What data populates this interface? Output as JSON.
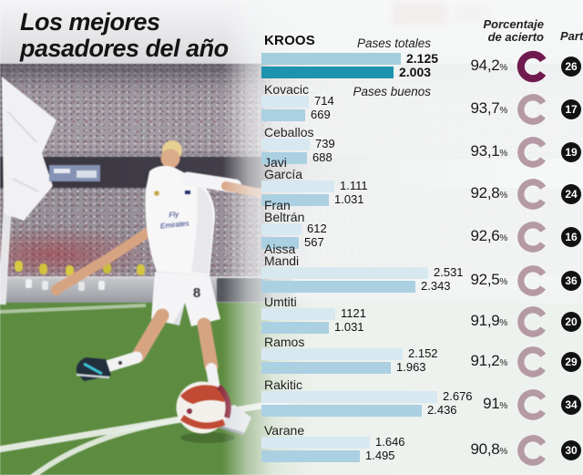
{
  "title": "Los mejores\npasadores del año",
  "columns": {
    "percent_header": "Porcentaje\nde acierto",
    "part_header": "Part.",
    "series1_label": "Pases totales",
    "series2_label": "Pases buenos",
    "percent_sign": "%"
  },
  "colors": {
    "highlight_bar_top": "#a2cddd",
    "highlight_bar_bottom": "#1d93ad",
    "bar_top": "#d7e8f1",
    "bar_bottom": "#abd0e2",
    "donut_highlight": "#701b4f",
    "donut": "#b59aa5",
    "badge": "#121212"
  },
  "chart_data": {
    "type": "bar",
    "title": "Los mejores pasadores del año",
    "series": [
      "Pases totales",
      "Pases buenos"
    ],
    "xlabel": "Pases",
    "x_scale_max": 2676,
    "players": [
      {
        "name": "KROOS",
        "pases_totales": 2125,
        "pases_buenos": 2003,
        "totales_label": "2.125",
        "buenos_label": "2.003",
        "porcentaje_acierto": "94,2",
        "partidos": "26",
        "highlight": true
      },
      {
        "name": "Kovacic",
        "pases_totales": 714,
        "pases_buenos": 669,
        "totales_label": "714",
        "buenos_label": "669",
        "porcentaje_acierto": "93,7",
        "partidos": "17",
        "highlight": false
      },
      {
        "name": "Ceballos",
        "pases_totales": 739,
        "pases_buenos": 688,
        "totales_label": "739",
        "buenos_label": "688",
        "porcentaje_acierto": "93,1",
        "partidos": "19",
        "highlight": false
      },
      {
        "name": "Javi\nGarcía",
        "pases_totales": 1111,
        "pases_buenos": 1031,
        "totales_label": "1.111",
        "buenos_label": "1.031",
        "porcentaje_acierto": "92,8",
        "partidos": "24",
        "highlight": false
      },
      {
        "name": "Fran\nBeltrán",
        "pases_totales": 612,
        "pases_buenos": 567,
        "totales_label": "612",
        "buenos_label": "567",
        "porcentaje_acierto": "92,6",
        "partidos": "16",
        "highlight": false
      },
      {
        "name": "Aissa\nMandi",
        "pases_totales": 2531,
        "pases_buenos": 2343,
        "totales_label": "2.531",
        "buenos_label": "2.343",
        "porcentaje_acierto": "92,5",
        "partidos": "36",
        "highlight": false
      },
      {
        "name": "Umtiti",
        "pases_totales": 1121,
        "pases_buenos": 1031,
        "totales_label": "1121",
        "buenos_label": "1.031",
        "porcentaje_acierto": "91,9",
        "partidos": "20",
        "highlight": false
      },
      {
        "name": "Ramos",
        "pases_totales": 2152,
        "pases_buenos": 1963,
        "totales_label": "2.152",
        "buenos_label": "1.963",
        "porcentaje_acierto": "91,2",
        "partidos": "29",
        "highlight": false
      },
      {
        "name": "Rakitic",
        "pases_totales": 2676,
        "pases_buenos": 2436,
        "totales_label": "2.676",
        "buenos_label": "2.436",
        "porcentaje_acierto": "91",
        "partidos": "34",
        "highlight": false
      },
      {
        "name": "Varane",
        "pases_totales": 1646,
        "pases_buenos": 1495,
        "totales_label": "1.646",
        "buenos_label": "1.495",
        "porcentaje_acierto": "90,8",
        "partidos": "30",
        "highlight": false
      }
    ]
  }
}
